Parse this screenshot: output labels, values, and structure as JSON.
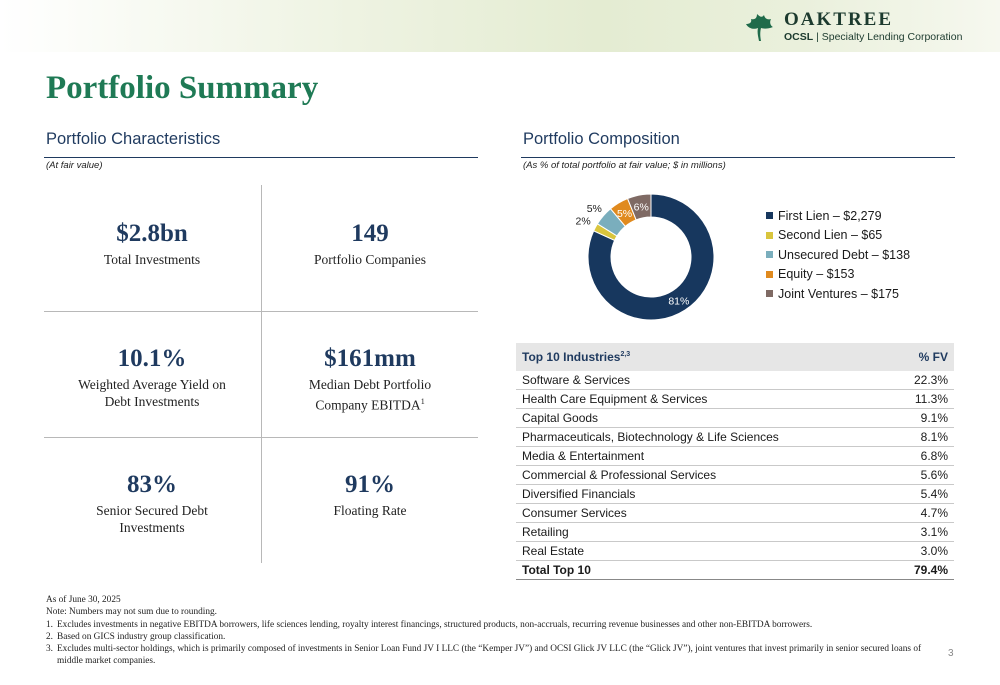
{
  "brand": {
    "name": "OAKTREE",
    "sub_bold": "OCSL",
    "sub_rest": " | Specialty Lending Corporation"
  },
  "page_title": "Portfolio Summary",
  "characteristics": {
    "heading": "Portfolio Characteristics",
    "note": "(At fair value)",
    "metrics": [
      {
        "value": "$2.8bn",
        "label": "Total Investments"
      },
      {
        "value": "149",
        "label": "Portfolio Companies"
      },
      {
        "value": "10.1%",
        "label": "Weighted Average Yield on Debt Investments"
      },
      {
        "value": "$161mm",
        "label": "Median Debt Portfolio Company EBITDA",
        "footnote": "1"
      },
      {
        "value": "83%",
        "label": "Senior Secured Debt Investments"
      },
      {
        "value": "91%",
        "label": "Floating Rate"
      }
    ]
  },
  "composition": {
    "heading": "Portfolio Composition",
    "note": "(As % of total portfolio at fair value; $ in millions)",
    "colors": {
      "first_lien": "#17375e",
      "second_lien": "#d9c53d",
      "unsecured": "#7aaebd",
      "equity": "#e08a1e",
      "jv": "#7f6a64"
    }
  },
  "chart_data": {
    "type": "pie",
    "donut": true,
    "categories": [
      "First Lien – $2,279",
      "Second Lien – $65",
      "Unsecured Debt – $138",
      "Equity – $153",
      "Joint Ventures – $175"
    ],
    "values": [
      81,
      2,
      5,
      5,
      6
    ],
    "value_labels": [
      "81%",
      "2%",
      "5%",
      "5%",
      "6%"
    ],
    "legend_position": "right"
  },
  "industries": {
    "header_name": "Top 10 Industries",
    "header_sup": "2,3",
    "header_value": "% FV",
    "rows": [
      {
        "name": "Software & Services",
        "value": "22.3%"
      },
      {
        "name": "Health Care Equipment & Services",
        "value": "11.3%"
      },
      {
        "name": "Capital Goods",
        "value": "9.1%"
      },
      {
        "name": "Pharmaceuticals, Biotechnology & Life Sciences",
        "value": "8.1%"
      },
      {
        "name": "Media & Entertainment",
        "value": "6.8%"
      },
      {
        "name": "Commercial & Professional Services",
        "value": "5.6%"
      },
      {
        "name": "Diversified Financials",
        "value": "5.4%"
      },
      {
        "name": "Consumer Services",
        "value": "4.7%"
      },
      {
        "name": "Retailing",
        "value": "3.1%"
      },
      {
        "name": "Real Estate",
        "value": "3.0%"
      }
    ],
    "total": {
      "name": "Total Top 10",
      "value": "79.4%"
    }
  },
  "footer": {
    "as_of": "As of June 30, 2025",
    "note": "Note: Numbers may not sum due to rounding.",
    "footnotes": [
      {
        "num": "1.",
        "text": "Excludes investments in negative EBITDA borrowers, life sciences lending, royalty interest financings, structured products, non-accruals, recurring revenue businesses and other non-EBITDA borrowers."
      },
      {
        "num": "2.",
        "text": "Based on GICS industry group classification."
      },
      {
        "num": "3.",
        "text": "Excludes multi-sector holdings, which is primarily composed of investments in Senior Loan Fund JV I LLC (the “Kemper JV”) and OCSI Glick JV LLC (the “Glick JV”), joint ventures that invest primarily in senior secured loans of middle market companies."
      }
    ]
  },
  "page_number": "3"
}
